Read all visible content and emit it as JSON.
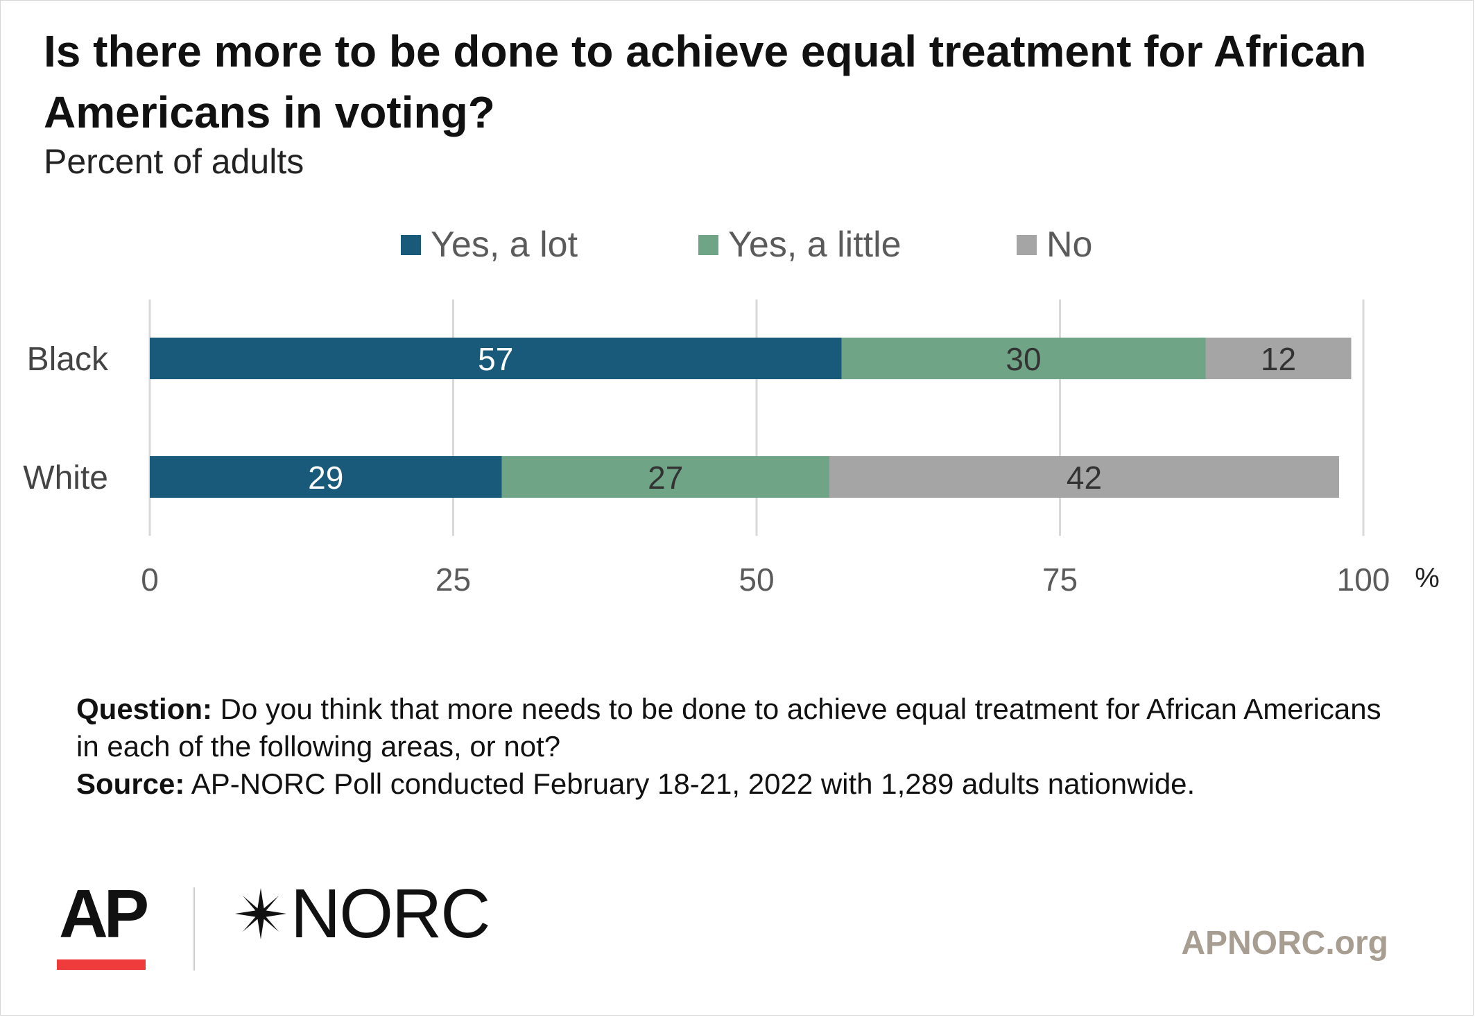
{
  "header": {
    "title": "Is there more to be done to achieve equal treatment for African Americans in voting?",
    "subtitle": "Percent of adults"
  },
  "legend": [
    {
      "label": "Yes, a lot",
      "color": "#195a7b"
    },
    {
      "label": "Yes, a little",
      "color": "#70a487"
    },
    {
      "label": "No",
      "color": "#a5a5a5"
    }
  ],
  "chart_data": {
    "type": "bar",
    "orientation": "horizontal",
    "stacked": true,
    "categories": [
      "Black",
      "White"
    ],
    "series": [
      {
        "name": "Yes, a lot",
        "values": [
          57,
          29
        ],
        "color": "#195a7b"
      },
      {
        "name": "Yes, a little",
        "values": [
          30,
          27
        ],
        "color": "#70a487"
      },
      {
        "name": "No",
        "values": [
          12,
          42
        ],
        "color": "#a5a5a5"
      }
    ],
    "xlim": [
      0,
      100
    ],
    "xticks": [
      0,
      25,
      50,
      75,
      100
    ],
    "x_unit": "%",
    "grid": true,
    "legend_position": "top"
  },
  "notes": {
    "question_label": "Question:",
    "question_text": " Do you think that more needs to be done to achieve equal treatment for African Americans in each of the following areas, or not?",
    "source_label": "Source:",
    "source_text": " AP-NORC Poll conducted February 18-21, 2022 with 1,289 adults nationwide."
  },
  "footer": {
    "ap_logo": "AP",
    "norc_logo": "NORC",
    "site": "APNORC.org"
  }
}
